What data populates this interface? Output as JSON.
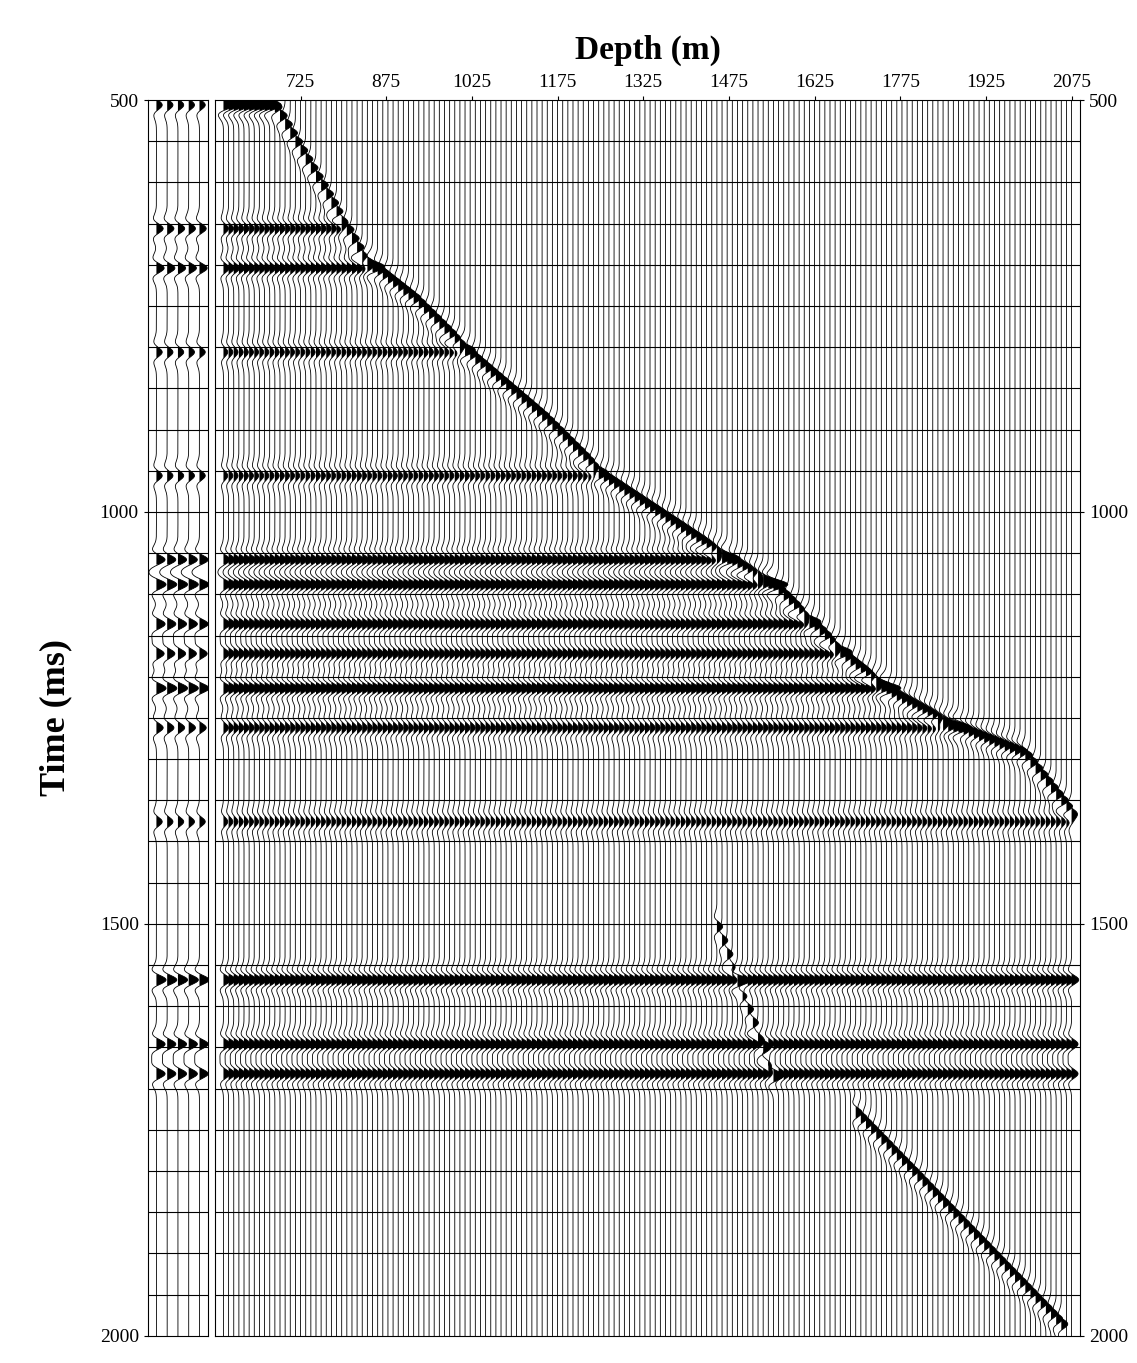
{
  "chart_data": {
    "type": "wiggle",
    "title": "Depth (m)",
    "y_label": "Time (ms)",
    "xlim": [
      575,
      2090
    ],
    "xticks": [
      725,
      875,
      1025,
      1175,
      1325,
      1475,
      1625,
      1775,
      1925,
      2075
    ],
    "ylim": [
      2000,
      500
    ],
    "yticks": [
      500,
      1000,
      1500,
      2000
    ],
    "grid": true,
    "color": "#000000",
    "time_lines": [
      550,
      600,
      650,
      700,
      750,
      800,
      850,
      900,
      950,
      1000,
      1050,
      1100,
      1150,
      1200,
      1250,
      1300,
      1350,
      1400,
      1450,
      1500,
      1550,
      1600,
      1650,
      1700,
      1750,
      1800,
      1850,
      1900,
      1950
    ],
    "traces": {
      "first_depth": 590,
      "last_depth": 2075,
      "spacing": 9
    },
    "first_arrival": {
      "depth": [
        590,
        678,
        765,
        835,
        923,
        1028,
        1150,
        1255,
        1465,
        1553,
        1632,
        1684,
        1763,
        1859,
        1990,
        2087
      ],
      "time": [
        505,
        506,
        608,
        692,
        740,
        812,
        884,
        956,
        1052,
        1088,
        1142,
        1178,
        1220,
        1256,
        1292,
        1376
      ],
      "amplitude": 1.0
    },
    "reflectors": {
      "time": [
        506,
        656,
        704,
        806,
        956,
        1058,
        1088,
        1136,
        1172,
        1214,
        1262,
        1376,
        1568,
        1646,
        1682
      ],
      "amplitude": [
        0.6,
        0.7,
        0.8,
        0.6,
        0.6,
        0.9,
        1.0,
        0.9,
        0.8,
        1.0,
        0.7,
        0.6,
        1.0,
        0.9,
        0.9
      ]
    },
    "downgoing": [
      {
        "depth": [
          1450,
          1560
        ],
        "time": [
          1496,
          1700
        ],
        "amplitude": 0.8
      },
      {
        "depth": [
          1690,
          2060
        ],
        "time": [
          1724,
          1988
        ],
        "amplitude": 0.9
      }
    ],
    "corridor_traces": 5
  }
}
